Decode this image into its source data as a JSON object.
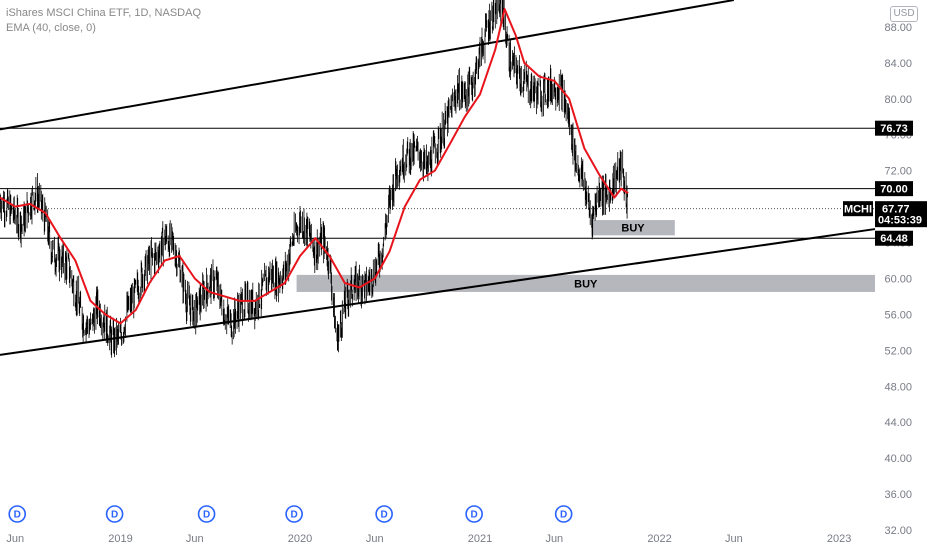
{
  "legend": {
    "line1": "iShares MSCI China ETF, 1D, NASDAQ",
    "line2": "EMA (40, close, 0)"
  },
  "currency_badge": "USD",
  "chart_data": {
    "type": "line",
    "title": "iShares MSCI China ETF, 1D, NASDAQ",
    "symbol": "MCHI",
    "interval": "1D",
    "exchange": "NASDAQ",
    "y_axis": {
      "ticks": [
        "32.00",
        "36.00",
        "40.00",
        "44.00",
        "48.00",
        "52.00",
        "56.00",
        "60.00",
        "64.00",
        "68.00",
        "72.00",
        "76.00",
        "80.00",
        "84.00",
        "88.00"
      ],
      "range": [
        32,
        91
      ]
    },
    "x_axis": {
      "ticks": [
        "Jun",
        "2019",
        "Jun",
        "2020",
        "Jun",
        "2021",
        "Jun",
        "2022",
        "Jun",
        "2023"
      ],
      "tick_dates": [
        "2018-06-01",
        "2019-01-01",
        "2019-06-01",
        "2020-01-01",
        "2020-06-01",
        "2021-01-01",
        "2021-06-01",
        "2022-01-01",
        "2022-06-01",
        "2023-01-01"
      ],
      "range": [
        "2018-05-01",
        "2023-03-15"
      ]
    },
    "series": [
      {
        "name": "MCHI",
        "kind": "daily-bars",
        "color": "#000000",
        "points": [
          [
            "2018-05-01",
            68.8
          ],
          [
            "2018-05-15",
            68.0
          ],
          [
            "2018-06-01",
            67.0
          ],
          [
            "2018-06-15",
            66.0
          ],
          [
            "2018-07-01",
            68.5
          ],
          [
            "2018-07-15",
            69.5
          ],
          [
            "2018-08-01",
            66.5
          ],
          [
            "2018-08-15",
            63.0
          ],
          [
            "2018-09-01",
            62.0
          ],
          [
            "2018-09-15",
            61.5
          ],
          [
            "2018-10-01",
            58.5
          ],
          [
            "2018-10-15",
            55.5
          ],
          [
            "2018-11-01",
            54.5
          ],
          [
            "2018-11-15",
            57.0
          ],
          [
            "2018-12-01",
            55.0
          ],
          [
            "2018-12-15",
            53.0
          ],
          [
            "2019-01-01",
            53.5
          ],
          [
            "2019-01-15",
            56.5
          ],
          [
            "2019-02-01",
            58.5
          ],
          [
            "2019-02-15",
            60.5
          ],
          [
            "2019-03-01",
            62.0
          ],
          [
            "2019-03-15",
            62.5
          ],
          [
            "2019-04-01",
            64.5
          ],
          [
            "2019-04-15",
            64.0
          ],
          [
            "2019-05-01",
            61.5
          ],
          [
            "2019-05-15",
            57.5
          ],
          [
            "2019-06-01",
            56.0
          ],
          [
            "2019-06-15",
            58.0
          ],
          [
            "2019-07-01",
            59.5
          ],
          [
            "2019-07-15",
            59.5
          ],
          [
            "2019-08-01",
            56.0
          ],
          [
            "2019-08-15",
            55.0
          ],
          [
            "2019-09-01",
            57.0
          ],
          [
            "2019-09-15",
            57.5
          ],
          [
            "2019-10-01",
            57.0
          ],
          [
            "2019-10-15",
            58.5
          ],
          [
            "2019-11-01",
            60.5
          ],
          [
            "2019-11-15",
            60.0
          ],
          [
            "2019-12-01",
            60.5
          ],
          [
            "2019-12-15",
            64.0
          ],
          [
            "2020-01-01",
            66.5
          ],
          [
            "2020-01-15",
            65.5
          ],
          [
            "2020-02-01",
            63.0
          ],
          [
            "2020-02-15",
            64.5
          ],
          [
            "2020-03-01",
            62.0
          ],
          [
            "2020-03-15",
            53.0
          ],
          [
            "2020-04-01",
            57.0
          ],
          [
            "2020-04-15",
            59.0
          ],
          [
            "2020-05-01",
            59.5
          ],
          [
            "2020-05-15",
            59.0
          ],
          [
            "2020-06-01",
            61.0
          ],
          [
            "2020-06-15",
            63.0
          ],
          [
            "2020-07-01",
            68.5
          ],
          [
            "2020-07-15",
            72.0
          ],
          [
            "2020-08-01",
            73.5
          ],
          [
            "2020-08-15",
            74.0
          ],
          [
            "2020-09-01",
            74.0
          ],
          [
            "2020-09-15",
            72.0
          ],
          [
            "2020-10-01",
            74.5
          ],
          [
            "2020-10-15",
            76.0
          ],
          [
            "2020-11-01",
            78.5
          ],
          [
            "2020-11-15",
            81.0
          ],
          [
            "2020-12-01",
            80.5
          ],
          [
            "2020-12-15",
            81.5
          ],
          [
            "2021-01-01",
            85.0
          ],
          [
            "2021-01-15",
            88.0
          ],
          [
            "2021-02-01",
            90.0
          ],
          [
            "2021-02-15",
            90.5
          ],
          [
            "2021-03-01",
            84.5
          ],
          [
            "2021-03-15",
            83.0
          ],
          [
            "2021-04-01",
            82.0
          ],
          [
            "2021-04-15",
            81.0
          ],
          [
            "2021-05-01",
            80.5
          ],
          [
            "2021-05-15",
            81.0
          ],
          [
            "2021-06-01",
            81.5
          ],
          [
            "2021-06-15",
            81.0
          ],
          [
            "2021-07-01",
            77.5
          ],
          [
            "2021-07-15",
            73.0
          ],
          [
            "2021-08-01",
            70.5
          ],
          [
            "2021-08-15",
            66.5
          ],
          [
            "2021-09-01",
            70.0
          ],
          [
            "2021-09-15",
            69.0
          ],
          [
            "2021-10-01",
            71.0
          ],
          [
            "2021-10-15",
            72.5
          ],
          [
            "2021-10-29",
            67.77
          ]
        ]
      },
      {
        "name": "EMA (40, close, 0)",
        "kind": "line",
        "color": "#e8141c",
        "points": [
          [
            "2018-05-01",
            69.0
          ],
          [
            "2018-06-01",
            68.0
          ],
          [
            "2018-07-01",
            68.3
          ],
          [
            "2018-08-01",
            67.3
          ],
          [
            "2018-09-01",
            64.5
          ],
          [
            "2018-10-01",
            62.0
          ],
          [
            "2018-11-01",
            57.5
          ],
          [
            "2018-12-01",
            56.0
          ],
          [
            "2019-01-01",
            55.0
          ],
          [
            "2019-02-01",
            56.5
          ],
          [
            "2019-03-01",
            59.5
          ],
          [
            "2019-04-01",
            62.0
          ],
          [
            "2019-05-01",
            62.5
          ],
          [
            "2019-06-01",
            60.0
          ],
          [
            "2019-07-01",
            58.5
          ],
          [
            "2019-08-01",
            58.0
          ],
          [
            "2019-09-01",
            57.5
          ],
          [
            "2019-10-01",
            57.5
          ],
          [
            "2019-11-01",
            58.5
          ],
          [
            "2019-12-01",
            59.5
          ],
          [
            "2020-01-01",
            62.5
          ],
          [
            "2020-02-01",
            64.5
          ],
          [
            "2020-03-01",
            62.5
          ],
          [
            "2020-04-01",
            59.5
          ],
          [
            "2020-05-01",
            59.0
          ],
          [
            "2020-06-01",
            60.0
          ],
          [
            "2020-07-01",
            63.0
          ],
          [
            "2020-08-01",
            68.0
          ],
          [
            "2020-09-01",
            71.0
          ],
          [
            "2020-10-01",
            72.0
          ],
          [
            "2020-11-01",
            75.0
          ],
          [
            "2020-12-01",
            78.0
          ],
          [
            "2021-01-01",
            80.5
          ],
          [
            "2021-02-01",
            85.5
          ],
          [
            "2021-02-20",
            90.0
          ],
          [
            "2021-03-15",
            87.0
          ],
          [
            "2021-04-01",
            84.0
          ],
          [
            "2021-05-01",
            82.5
          ],
          [
            "2021-06-01",
            82.0
          ],
          [
            "2021-07-01",
            80.0
          ],
          [
            "2021-08-01",
            74.5
          ],
          [
            "2021-09-01",
            71.5
          ],
          [
            "2021-10-01",
            69.0
          ],
          [
            "2021-10-15",
            70.0
          ],
          [
            "2021-10-29",
            69.5
          ]
        ]
      }
    ],
    "horizontal_levels": [
      {
        "value": 76.73,
        "label": "76.73"
      },
      {
        "value": 70.0,
        "label": "70.00"
      },
      {
        "value": 64.48,
        "label": "64.48"
      }
    ],
    "last_price": {
      "symbol": "MCHI",
      "value": "67.77",
      "countdown": "04:53:39"
    },
    "trendlines": [
      {
        "name": "upper-channel",
        "from": [
          "2018-05-01",
          76.6
        ],
        "to": [
          "2022-06-01",
          91.0
        ]
      },
      {
        "name": "lower-channel",
        "from": [
          "2018-05-01",
          51.5
        ],
        "to": [
          "2023-03-15",
          65.5
        ]
      }
    ],
    "zones": [
      {
        "label": "BUY",
        "from_date": "2021-08-15",
        "to_date": "2022-02-01",
        "low": 64.8,
        "high": 66.5
      },
      {
        "label": "BUY",
        "from_date": "2019-12-25",
        "to_date": "2023-03-15",
        "low": 58.5,
        "high": 60.4
      }
    ],
    "dividend_markers": {
      "label": "D",
      "dates": [
        "2018-06-05",
        "2018-12-20",
        "2019-06-25",
        "2019-12-20",
        "2020-06-20",
        "2020-12-20",
        "2021-06-20"
      ]
    },
    "grid": false,
    "legend_position": "top-left"
  }
}
